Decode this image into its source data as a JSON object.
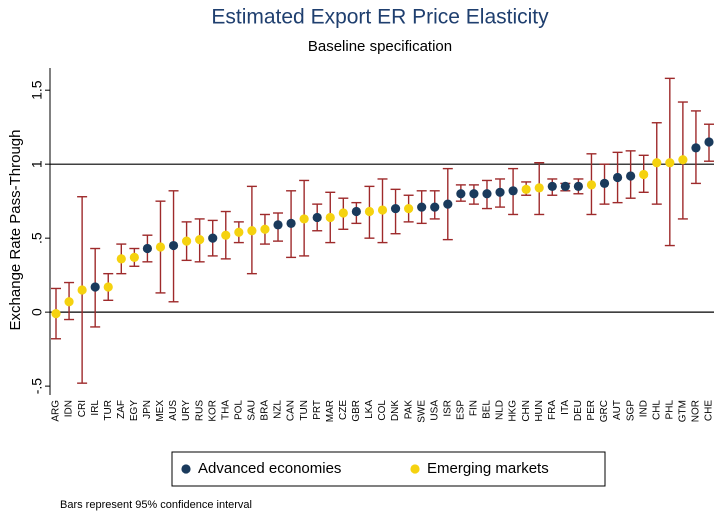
{
  "chart_data": {
    "type": "dot-errorbar",
    "title": "Estimated Export ER Price Elasticity",
    "subtitle": "Baseline specification",
    "y_label": "Exchange Rate Pass-Through",
    "note": "Bars represent 95% confidence interval",
    "categories": [
      "ARG",
      "IDN",
      "CRI",
      "IRL",
      "TUR",
      "ZAF",
      "EGY",
      "JPN",
      "MEX",
      "AUS",
      "URY",
      "RUS",
      "KOR",
      "THA",
      "POL",
      "SAU",
      "BRA",
      "NZL",
      "CAN",
      "TUN",
      "PRT",
      "MAR",
      "CZE",
      "GBR",
      "LKA",
      "COL",
      "DNK",
      "PAK",
      "SWE",
      "USA",
      "ISR",
      "ESP",
      "FIN",
      "BEL",
      "NLD",
      "HKG",
      "CHN",
      "HUN",
      "FRA",
      "ITA",
      "DEU",
      "PER",
      "GRC",
      "AUT",
      "SGP",
      "IND",
      "CHL",
      "PHL",
      "GTM",
      "NOR",
      "CHE"
    ],
    "series": [
      {
        "name": "Advanced economies",
        "color": "#1a3a5c",
        "values": [
          null,
          null,
          null,
          0.17,
          null,
          null,
          null,
          0.43,
          null,
          0.45,
          null,
          null,
          0.5,
          null,
          null,
          null,
          null,
          0.59,
          0.6,
          null,
          0.64,
          null,
          null,
          0.68,
          null,
          null,
          0.7,
          null,
          0.71,
          0.71,
          0.73,
          0.8,
          0.8,
          0.8,
          0.81,
          0.82,
          null,
          null,
          0.85,
          0.85,
          0.85,
          null,
          0.87,
          0.91,
          0.92,
          null,
          null,
          null,
          null,
          1.11,
          1.15
        ],
        "lower": [
          null,
          null,
          null,
          -0.1,
          null,
          null,
          null,
          0.34,
          null,
          0.07,
          null,
          null,
          0.38,
          null,
          null,
          null,
          null,
          0.48,
          0.37,
          null,
          0.55,
          null,
          null,
          0.6,
          null,
          null,
          0.53,
          null,
          0.6,
          0.63,
          0.49,
          0.75,
          0.73,
          0.7,
          0.71,
          0.66,
          null,
          null,
          0.79,
          0.82,
          0.8,
          null,
          0.73,
          0.74,
          0.77,
          null,
          null,
          null,
          null,
          0.87,
          1.02
        ],
        "upper": [
          null,
          null,
          null,
          0.43,
          null,
          null,
          null,
          0.52,
          null,
          0.82,
          null,
          null,
          0.62,
          null,
          null,
          null,
          null,
          0.67,
          0.82,
          null,
          0.73,
          null,
          null,
          0.74,
          null,
          null,
          0.83,
          null,
          0.82,
          0.82,
          0.97,
          0.86,
          0.86,
          0.89,
          0.9,
          0.97,
          null,
          null,
          0.9,
          0.87,
          0.9,
          null,
          1.0,
          1.08,
          1.09,
          null,
          null,
          null,
          null,
          1.36,
          1.27
        ]
      },
      {
        "name": "Emerging markets",
        "color": "#f5d20f",
        "values": [
          -0.01,
          0.07,
          0.15,
          null,
          0.17,
          0.36,
          0.37,
          null,
          0.44,
          null,
          0.48,
          0.49,
          null,
          0.52,
          0.54,
          0.55,
          0.56,
          null,
          null,
          0.63,
          null,
          0.64,
          0.67,
          null,
          0.68,
          0.69,
          null,
          0.7,
          null,
          null,
          null,
          null,
          null,
          null,
          null,
          null,
          0.83,
          0.84,
          null,
          null,
          null,
          0.86,
          null,
          null,
          null,
          0.93,
          1.01,
          1.01,
          1.03,
          null,
          null
        ],
        "lower": [
          -0.18,
          -0.05,
          -0.48,
          null,
          0.08,
          0.26,
          0.31,
          null,
          0.13,
          null,
          0.35,
          0.34,
          null,
          0.36,
          0.47,
          0.26,
          0.46,
          null,
          null,
          0.38,
          null,
          0.47,
          0.56,
          null,
          0.5,
          0.47,
          null,
          0.61,
          null,
          null,
          null,
          null,
          null,
          null,
          null,
          null,
          0.79,
          0.66,
          null,
          null,
          null,
          0.66,
          null,
          null,
          null,
          0.81,
          0.73,
          0.45,
          0.63,
          null,
          null
        ],
        "upper": [
          0.16,
          0.2,
          0.78,
          null,
          0.26,
          0.46,
          0.43,
          null,
          0.75,
          null,
          0.61,
          0.63,
          null,
          0.68,
          0.61,
          0.85,
          0.66,
          null,
          null,
          0.89,
          null,
          0.81,
          0.77,
          null,
          0.85,
          0.9,
          null,
          0.79,
          null,
          null,
          null,
          null,
          null,
          null,
          null,
          null,
          0.88,
          1.01,
          null,
          null,
          null,
          1.07,
          null,
          null,
          null,
          1.06,
          1.28,
          1.58,
          1.42,
          null,
          null
        ]
      }
    ],
    "errorbar_color": "#9e2a2b",
    "reference_lines": [
      0,
      1
    ],
    "ylim": [
      -0.56,
      1.65
    ],
    "yticks": [
      {
        "value": -0.5,
        "label": "-.5"
      },
      0,
      {
        "value": 0.5,
        "label": ".5"
      },
      1,
      1.5
    ]
  }
}
